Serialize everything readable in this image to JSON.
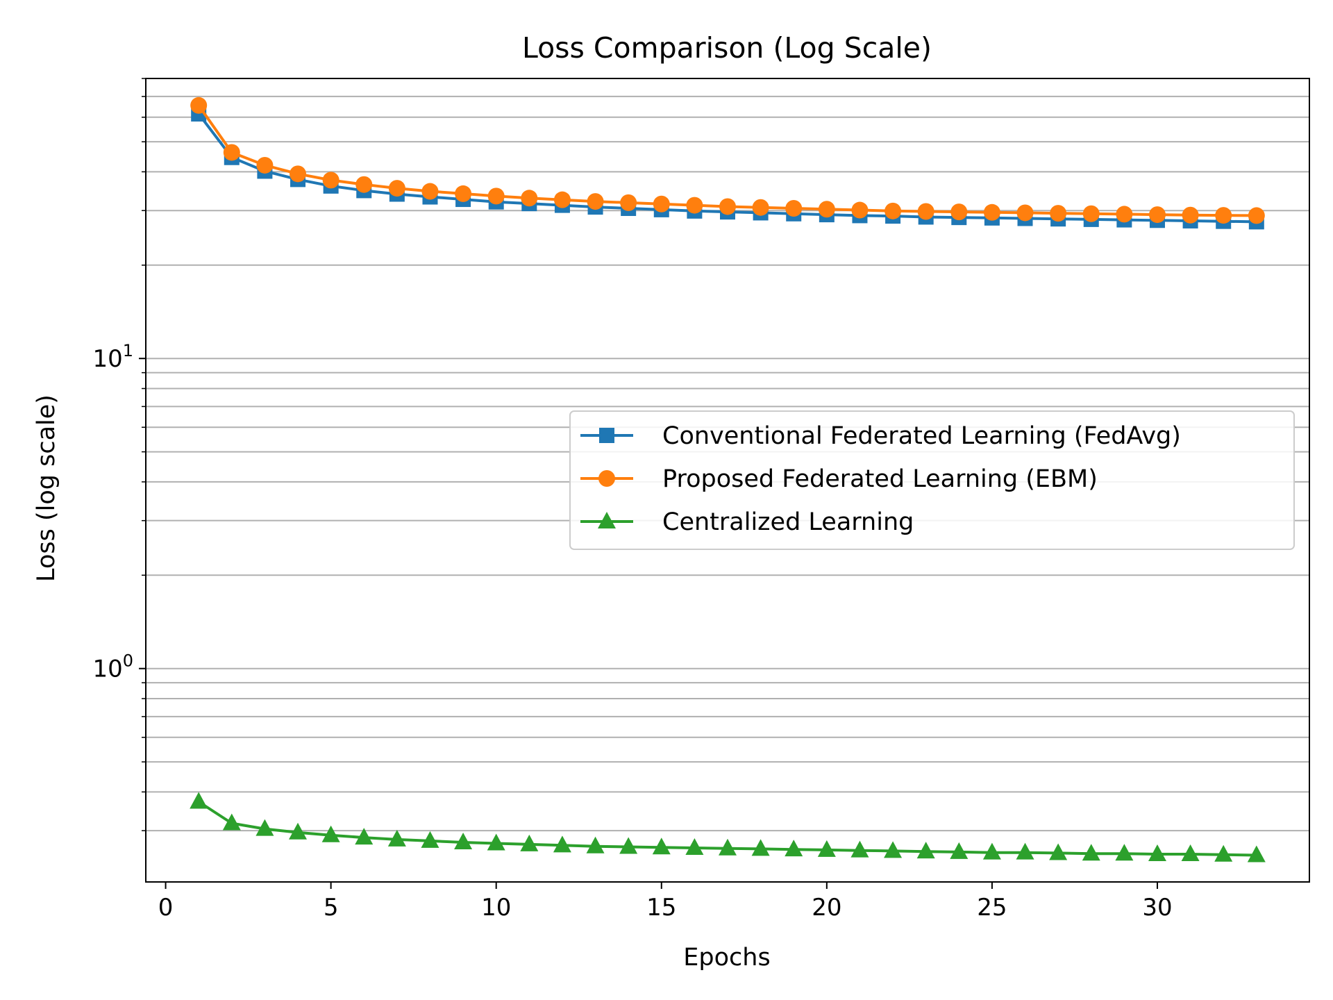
{
  "chart_data": {
    "type": "line",
    "title": "Loss Comparison (Log Scale)",
    "xlabel": "Epochs",
    "ylabel": "Loss (log scale)",
    "yscale": "log",
    "xlim": [
      -0.6,
      34.6
    ],
    "ylim": [
      0.205,
      80
    ],
    "xticks": [
      0,
      5,
      10,
      15,
      20,
      25,
      30
    ],
    "xtick_labels": [
      "0",
      "5",
      "10",
      "15",
      "20",
      "25",
      "30"
    ],
    "yticks": [
      1,
      10
    ],
    "ytick_labels": [
      {
        "base": "10",
        "exp": "0"
      },
      {
        "base": "10",
        "exp": "1"
      }
    ],
    "grid": "y-major-and-minor",
    "legend_position": "center-right",
    "x": [
      1,
      2,
      3,
      4,
      5,
      6,
      7,
      8,
      9,
      10,
      11,
      12,
      13,
      14,
      15,
      16,
      17,
      18,
      19,
      20,
      21,
      22,
      23,
      24,
      25,
      26,
      27,
      28,
      29,
      30,
      31,
      32,
      33
    ],
    "series": [
      {
        "name": "Conventional Federated Learning (FedAvg)",
        "color": "#1f77b4",
        "marker": "square",
        "values": [
          61.5,
          44.5,
          40.2,
          37.8,
          36.0,
          34.8,
          33.9,
          33.2,
          32.6,
          32.0,
          31.6,
          31.2,
          30.8,
          30.5,
          30.2,
          29.9,
          29.7,
          29.5,
          29.3,
          29.1,
          28.9,
          28.8,
          28.6,
          28.5,
          28.4,
          28.3,
          28.2,
          28.1,
          28.0,
          27.9,
          27.8,
          27.7,
          27.6
        ]
      },
      {
        "name": "Proposed Federated Learning (EBM)",
        "color": "#ff7f0e",
        "marker": "circle",
        "values": [
          65.5,
          46.2,
          42.0,
          39.4,
          37.6,
          36.4,
          35.4,
          34.6,
          34.0,
          33.4,
          32.9,
          32.5,
          32.1,
          31.8,
          31.5,
          31.2,
          30.9,
          30.7,
          30.5,
          30.3,
          30.1,
          29.9,
          29.8,
          29.7,
          29.6,
          29.5,
          29.4,
          29.3,
          29.2,
          29.1,
          29.0,
          28.95,
          28.9
        ]
      },
      {
        "name": "Centralized Learning",
        "color": "#2ca02c",
        "marker": "triangle",
        "values": [
          0.372,
          0.317,
          0.304,
          0.296,
          0.29,
          0.285,
          0.281,
          0.278,
          0.275,
          0.273,
          0.271,
          0.269,
          0.267,
          0.266,
          0.265,
          0.264,
          0.263,
          0.262,
          0.261,
          0.26,
          0.259,
          0.258,
          0.257,
          0.256,
          0.255,
          0.255,
          0.254,
          0.253,
          0.253,
          0.252,
          0.252,
          0.251,
          0.25
        ]
      }
    ]
  }
}
